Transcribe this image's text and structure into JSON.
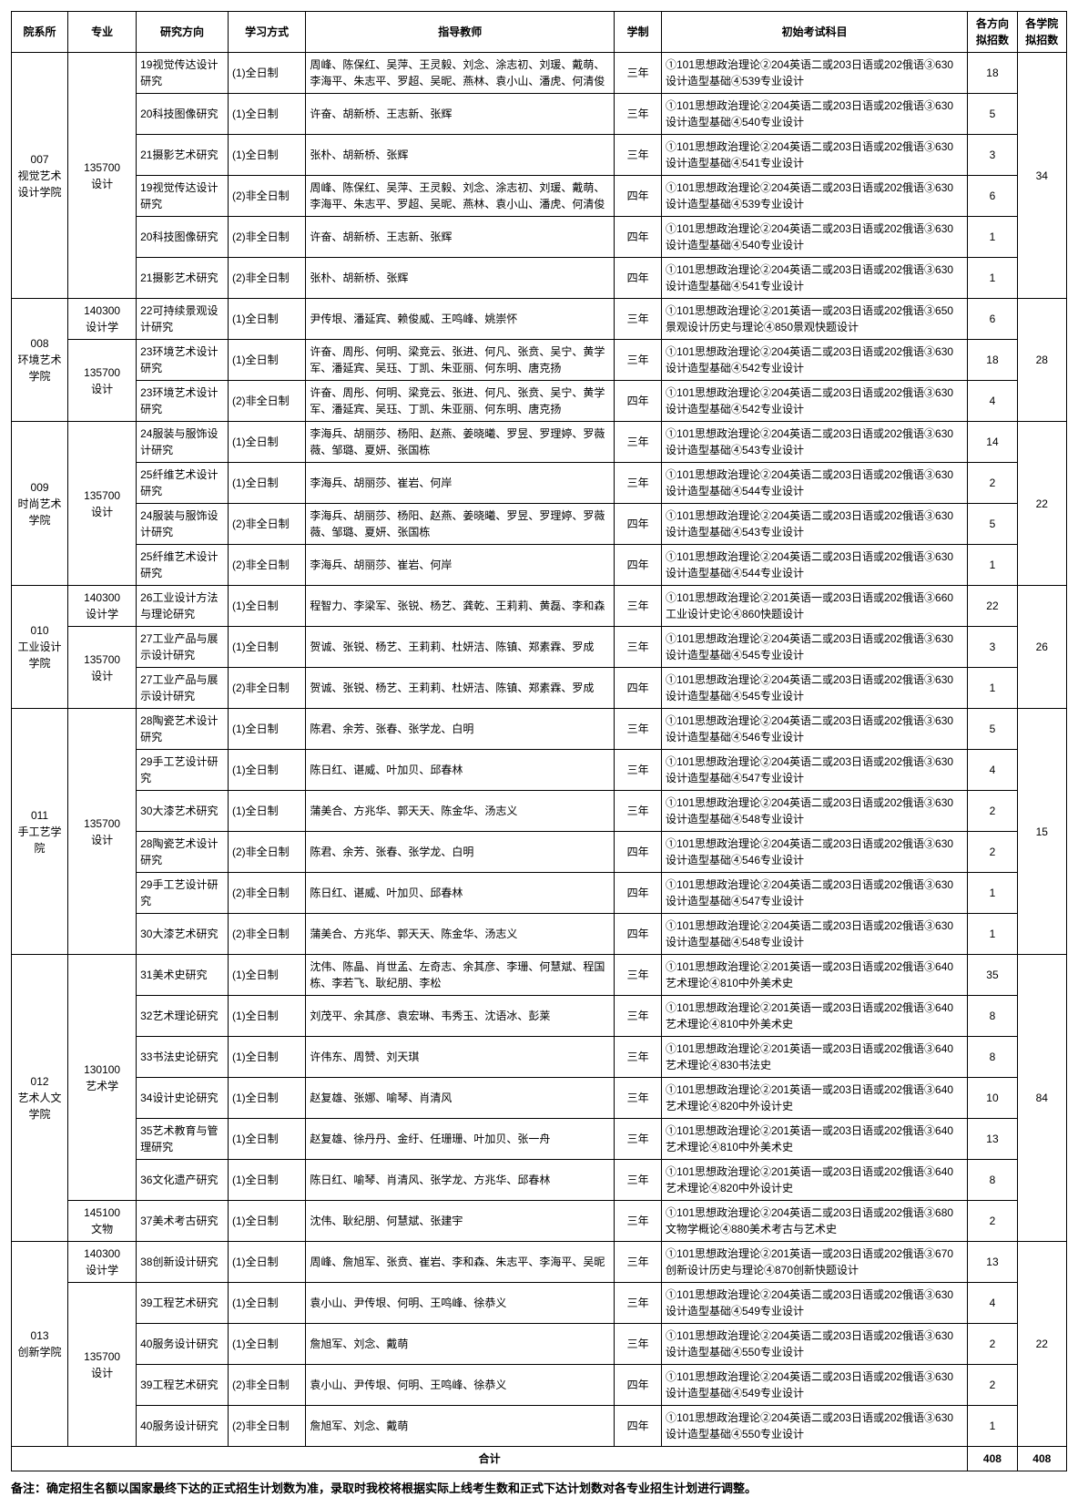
{
  "headers": {
    "dept": "院系所",
    "major": "专业",
    "dir": "研究方向",
    "mode": "学习方式",
    "teachers": "指导教师",
    "system": "学制",
    "exam": "初始考试科目",
    "q1": "各方向拟招数",
    "q2": "各学院拟招数"
  },
  "depts": [
    {
      "name": "007\n视觉艺术设计学院",
      "deptTotal": "34",
      "majors": [
        {
          "name": "135700\n设计",
          "rows": [
            {
              "dir": "19视觉传达设计研究",
              "mode": "(1)全日制",
              "teachers": "周峰、陈保红、吴萍、王灵毅、刘念、涂志初、刘瑗、戴萌、李海平、朱志平、罗超、吴昵、燕林、袁小山、潘虎、何清俊",
              "system": "三年",
              "exam": "①101思想政治理论②204英语二或203日语或202俄语③630设计造型基础④539专业设计",
              "q1": "18"
            },
            {
              "dir": "20科技图像研究",
              "mode": "(1)全日制",
              "teachers": "许奋、胡新桥、王志新、张辉",
              "system": "三年",
              "exam": "①101思想政治理论②204英语二或203日语或202俄语③630设计造型基础④540专业设计",
              "q1": "5"
            },
            {
              "dir": "21摄影艺术研究",
              "mode": "(1)全日制",
              "teachers": "张朴、胡新桥、张辉",
              "system": "三年",
              "exam": "①101思想政治理论②204英语二或203日语或202俄语③630设计造型基础④541专业设计",
              "q1": "3"
            },
            {
              "dir": "19视觉传达设计研究",
              "mode": "(2)非全日制",
              "teachers": "周峰、陈保红、吴萍、王灵毅、刘念、涂志初、刘瑗、戴萌、李海平、朱志平、罗超、吴昵、燕林、袁小山、潘虎、何清俊",
              "system": "四年",
              "exam": "①101思想政治理论②204英语二或203日语或202俄语③630设计造型基础④539专业设计",
              "q1": "6"
            },
            {
              "dir": "20科技图像研究",
              "mode": "(2)非全日制",
              "teachers": "许奋、胡新桥、王志新、张辉",
              "system": "四年",
              "exam": "①101思想政治理论②204英语二或203日语或202俄语③630设计造型基础④540专业设计",
              "q1": "1"
            },
            {
              "dir": "21摄影艺术研究",
              "mode": "(2)非全日制",
              "teachers": "张朴、胡新桥、张辉",
              "system": "四年",
              "exam": "①101思想政治理论②204英语二或203日语或202俄语③630设计造型基础④541专业设计",
              "q1": "1"
            }
          ]
        }
      ]
    },
    {
      "name": "008\n环境艺术学院",
      "deptTotal": "28",
      "majors": [
        {
          "name": "140300\n设计学",
          "rows": [
            {
              "dir": "22可持续景观设计研究",
              "mode": "(1)全日制",
              "teachers": "尹传垠、潘延宾、赖俊威、王鸣峰、姚崇怀",
              "system": "三年",
              "exam": "①101思想政治理论②201英语一或203日语或202俄语③650景观设计历史与理论④850景观快题设计",
              "q1": "6"
            }
          ]
        },
        {
          "name": "135700\n设计",
          "rows": [
            {
              "dir": "23环境艺术设计研究",
              "mode": "(1)全日制",
              "teachers": "许奋、周彤、何明、梁竞云、张进、何凡、张贲、吴宁、黄学军、潘延宾、吴珏、丁凯、朱亚丽、何东明、唐克扬",
              "system": "三年",
              "exam": "①101思想政治理论②204英语二或203日语或202俄语③630设计造型基础④542专业设计",
              "q1": "18"
            },
            {
              "dir": "23环境艺术设计研究",
              "mode": "(2)非全日制",
              "teachers": "许奋、周彤、何明、梁竞云、张进、何凡、张贲、吴宁、黄学军、潘延宾、吴珏、丁凯、朱亚丽、何东明、唐克扬",
              "system": "四年",
              "exam": "①101思想政治理论②204英语二或203日语或202俄语③630设计造型基础④542专业设计",
              "q1": "4"
            }
          ]
        }
      ]
    },
    {
      "name": "009\n时尚艺术学院",
      "deptTotal": "22",
      "majors": [
        {
          "name": "135700\n设计",
          "rows": [
            {
              "dir": "24服装与服饰设计研究",
              "mode": "(1)全日制",
              "teachers": "李海兵、胡丽莎、杨阳、赵燕、姜晓曦、罗昱、罗理婷、罗薇薇、邹璐、夏妍、张国栋",
              "system": "三年",
              "exam": "①101思想政治理论②204英语二或203日语或202俄语③630设计造型基础④543专业设计",
              "q1": "14"
            },
            {
              "dir": "25纤维艺术设计研究",
              "mode": "(1)全日制",
              "teachers": "李海兵、胡丽莎、崔岩、何岸",
              "system": "三年",
              "exam": "①101思想政治理论②204英语二或203日语或202俄语③630设计造型基础④544专业设计",
              "q1": "2"
            },
            {
              "dir": "24服装与服饰设计研究",
              "mode": "(2)非全日制",
              "teachers": "李海兵、胡丽莎、杨阳、赵燕、姜晓曦、罗昱、罗理婷、罗薇薇、邹璐、夏妍、张国栋",
              "system": "四年",
              "exam": "①101思想政治理论②204英语二或203日语或202俄语③630设计造型基础④543专业设计",
              "q1": "5"
            },
            {
              "dir": "25纤维艺术设计研究",
              "mode": "(2)非全日制",
              "teachers": "李海兵、胡丽莎、崔岩、何岸",
              "system": "四年",
              "exam": "①101思想政治理论②204英语二或203日语或202俄语③630设计造型基础④544专业设计",
              "q1": "1"
            }
          ]
        }
      ]
    },
    {
      "name": "010\n工业设计学院",
      "deptTotal": "26",
      "majors": [
        {
          "name": "140300\n设计学",
          "rows": [
            {
              "dir": "26工业设计方法与理论研究",
              "mode": "(1)全日制",
              "teachers": "程智力、李梁军、张锐、杨艺、龚乾、王莉莉、黄磊、李和森",
              "system": "三年",
              "exam": "①101思想政治理论②201英语一或203日语或202俄语③660工业设计史论④860快题设计",
              "q1": "22"
            }
          ]
        },
        {
          "name": "135700\n设计",
          "rows": [
            {
              "dir": "27工业产品与展示设计研究",
              "mode": "(1)全日制",
              "teachers": "贺诚、张锐、杨艺、王莉莉、杜妍洁、陈镇、郑素霖、罗成",
              "system": "三年",
              "exam": "①101思想政治理论②204英语二或203日语或202俄语③630设计造型基础④545专业设计",
              "q1": "3"
            },
            {
              "dir": "27工业产品与展示设计研究",
              "mode": "(2)非全日制",
              "teachers": "贺诚、张锐、杨艺、王莉莉、杜妍洁、陈镇、郑素霖、罗成",
              "system": "四年",
              "exam": "①101思想政治理论②204英语二或203日语或202俄语③630设计造型基础④545专业设计",
              "q1": "1"
            }
          ]
        }
      ]
    },
    {
      "name": "011\n手工艺学院",
      "deptTotal": "15",
      "majors": [
        {
          "name": "135700\n设计",
          "rows": [
            {
              "dir": "28陶瓷艺术设计研究",
              "mode": "(1)全日制",
              "teachers": "陈君、余芳、张春、张学龙、白明",
              "system": "三年",
              "exam": "①101思想政治理论②204英语二或203日语或202俄语③630设计造型基础④546专业设计",
              "q1": "5"
            },
            {
              "dir": "29手工艺设计研究",
              "mode": "(1)全日制",
              "teachers": "陈日红、谌威、叶加贝、邱春林",
              "system": "三年",
              "exam": "①101思想政治理论②204英语二或203日语或202俄语③630设计造型基础④547专业设计",
              "q1": "4"
            },
            {
              "dir": "30大漆艺术研究",
              "mode": "(1)全日制",
              "teachers": "蒲美合、方兆华、郭天天、陈金华、汤志义",
              "system": "三年",
              "exam": "①101思想政治理论②204英语二或203日语或202俄语③630设计造型基础④548专业设计",
              "q1": "2"
            },
            {
              "dir": "28陶瓷艺术设计研究",
              "mode": "(2)非全日制",
              "teachers": "陈君、余芳、张春、张学龙、白明",
              "system": "四年",
              "exam": "①101思想政治理论②204英语二或203日语或202俄语③630设计造型基础④546专业设计",
              "q1": "2"
            },
            {
              "dir": "29手工艺设计研究",
              "mode": "(2)非全日制",
              "teachers": "陈日红、谌威、叶加贝、邱春林",
              "system": "四年",
              "exam": "①101思想政治理论②204英语二或203日语或202俄语③630设计造型基础④547专业设计",
              "q1": "1"
            },
            {
              "dir": "30大漆艺术研究",
              "mode": "(2)非全日制",
              "teachers": "蒲美合、方兆华、郭天天、陈金华、汤志义",
              "system": "四年",
              "exam": "①101思想政治理论②204英语二或203日语或202俄语③630设计造型基础④548专业设计",
              "q1": "1"
            }
          ]
        }
      ]
    },
    {
      "name": "012\n艺术人文学院",
      "deptTotal": "84",
      "majors": [
        {
          "name": "130100\n艺术学",
          "rows": [
            {
              "dir": "31美术史研究",
              "mode": "(1)全日制",
              "teachers": "沈伟、陈晶、肖世孟、左奇志、余其彦、李珊、何慧斌、程国栋、李若飞、耿纪朋、李松",
              "system": "三年",
              "exam": "①101思想政治理论②201英语一或203日语或202俄语③640艺术理论④810中外美术史",
              "q1": "35"
            },
            {
              "dir": "32艺术理论研究",
              "mode": "(1)全日制",
              "teachers": "刘茂平、余其彦、袁宏琳、韦秀玉、沈语冰、彭莱",
              "system": "三年",
              "exam": "①101思想政治理论②201英语一或203日语或202俄语③640艺术理论④810中外美术史",
              "q1": "8"
            },
            {
              "dir": "33书法史论研究",
              "mode": "(1)全日制",
              "teachers": "许伟东、周赞、刘天琪",
              "system": "三年",
              "exam": "①101思想政治理论②201英语一或203日语或202俄语③640艺术理论④830书法史",
              "q1": "8"
            },
            {
              "dir": "34设计史论研究",
              "mode": "(1)全日制",
              "teachers": "赵复雄、张娜、喻琴、肖清风",
              "system": "三年",
              "exam": "①101思想政治理论②201英语一或203日语或202俄语③640艺术理论④820中外设计史",
              "q1": "10"
            },
            {
              "dir": "35艺术教育与管理研究",
              "mode": "(1)全日制",
              "teachers": "赵复雄、徐丹丹、金纡、任珊珊、叶加贝、张一舟",
              "system": "三年",
              "exam": "①101思想政治理论②201英语一或203日语或202俄语③640艺术理论④810中外美术史",
              "q1": "13"
            },
            {
              "dir": "36文化遗产研究",
              "mode": "(1)全日制",
              "teachers": "陈日红、喻琴、肖清风、张学龙、方兆华、邱春林",
              "system": "三年",
              "exam": "①101思想政治理论②201英语一或203日语或202俄语③640艺术理论④820中外设计史",
              "q1": "8"
            }
          ]
        },
        {
          "name": "145100\n文物",
          "rows": [
            {
              "dir": "37美术考古研究",
              "mode": "(1)全日制",
              "teachers": "沈伟、耿纪朋、何慧斌、张建宇",
              "system": "三年",
              "exam": "①101思想政治理论②204英语二或203日语或202俄语③680文物学概论④880美术考古与艺术史",
              "q1": "2"
            }
          ]
        }
      ]
    },
    {
      "name": "013\n创新学院",
      "deptTotal": "22",
      "majors": [
        {
          "name": "140300\n设计学",
          "rows": [
            {
              "dir": "38创新设计研究",
              "mode": "(1)全日制",
              "teachers": "周峰、詹旭军、张贲、崔岩、李和森、朱志平、李海平、吴昵",
              "system": "三年",
              "exam": "①101思想政治理论②201英语一或203日语或202俄语③670创新设计历史与理论④870创新快题设计",
              "q1": "13"
            }
          ]
        },
        {
          "name": "135700\n设计",
          "rows": [
            {
              "dir": "39工程艺术研究",
              "mode": "(1)全日制",
              "teachers": "袁小山、尹传垠、何明、王鸣峰、徐恭义",
              "system": "三年",
              "exam": "①101思想政治理论②204英语二或203日语或202俄语③630设计造型基础④549专业设计",
              "q1": "4"
            },
            {
              "dir": "40服务设计研究",
              "mode": "(1)全日制",
              "teachers": "詹旭军、刘念、戴萌",
              "system": "三年",
              "exam": "①101思想政治理论②204英语二或203日语或202俄语③630设计造型基础④550专业设计",
              "q1": "2"
            },
            {
              "dir": "39工程艺术研究",
              "mode": "(2)非全日制",
              "teachers": "袁小山、尹传垠、何明、王鸣峰、徐恭义",
              "system": "四年",
              "exam": "①101思想政治理论②204英语二或203日语或202俄语③630设计造型基础④549专业设计",
              "q1": "2"
            },
            {
              "dir": "40服务设计研究",
              "mode": "(2)非全日制",
              "teachers": "詹旭军、刘念、戴萌",
              "system": "四年",
              "exam": "①101思想政治理论②204英语二或203日语或202俄语③630设计造型基础④550专业设计",
              "q1": "1"
            }
          ]
        }
      ]
    }
  ],
  "totals": {
    "label": "合计",
    "sum1": "408",
    "sum2": "408"
  },
  "footnote": "备注：确定招生名额以国家最终下达的正式招生计划数为准，录取时我校将根据实际上线考生数和正式下达计划数对各专业招生计划进行调整。"
}
